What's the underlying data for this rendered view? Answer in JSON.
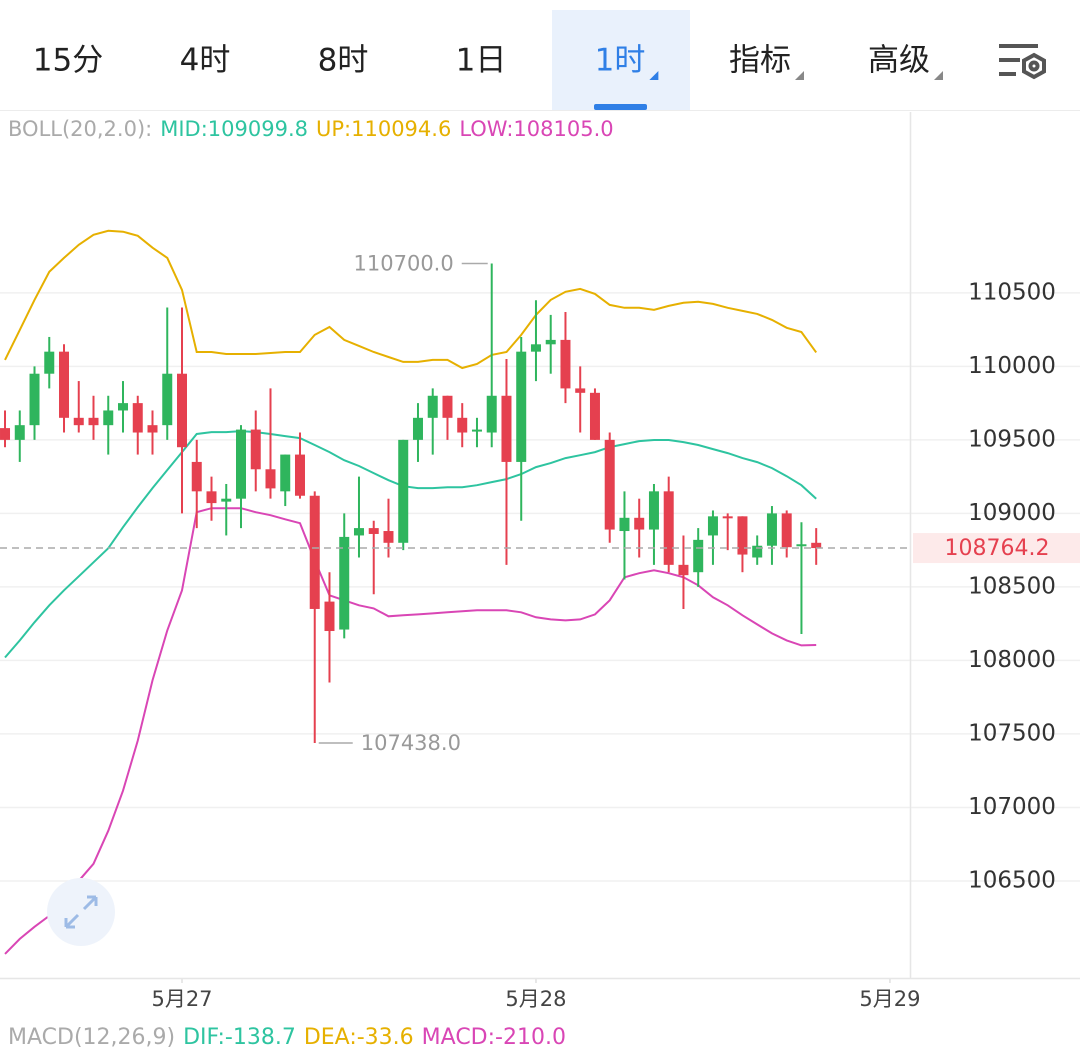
{
  "tabs": [
    {
      "label": "15分"
    },
    {
      "label": "4时"
    },
    {
      "label": "8时"
    },
    {
      "label": "1日"
    },
    {
      "label": "1时",
      "active": true,
      "dropdown": true
    },
    {
      "label": "指标",
      "dropdown": true
    },
    {
      "label": "高级",
      "dropdown": true
    }
  ],
  "chart_data": {
    "type": "candlestick",
    "indicator": {
      "label": "BOLL(20,2.0):",
      "items": [
        {
          "name": "MID:",
          "label": "109099.8",
          "color": "#2ec4a0"
        },
        {
          "name": "UP:",
          "label": "110094.6",
          "color": "#e6b000"
        },
        {
          "name": "LOW:",
          "label": "108105.0",
          "color": "#d946b5"
        }
      ]
    },
    "up_color": "#2fb55d",
    "down_color": "#e5404f",
    "x": [
      0,
      1,
      2,
      3,
      4,
      5,
      6,
      7,
      8,
      9,
      10,
      11,
      12,
      13,
      14,
      15,
      16,
      17,
      18,
      19,
      20,
      21,
      22,
      23,
      24,
      25,
      26,
      27,
      28,
      29,
      30,
      31,
      32,
      33,
      34,
      35,
      36,
      37,
      38,
      39,
      40,
      41,
      42,
      43,
      44,
      45,
      46,
      47,
      48,
      49,
      50,
      51,
      52,
      53,
      54,
      55
    ],
    "open": [
      109580,
      109500,
      109600,
      109950,
      110100,
      109650,
      109650,
      109600,
      109700,
      109750,
      109600,
      109600,
      109950,
      109350,
      109150,
      109080,
      109100,
      109570,
      109300,
      109150,
      109400,
      109120,
      108400,
      108210,
      108850,
      108900,
      108880,
      108800,
      109500,
      109650,
      109800,
      109650,
      109560,
      109550,
      109800,
      109350,
      110100,
      110150,
      110180,
      109850,
      109820,
      109500,
      108880,
      108970,
      108890,
      109150,
      108650,
      108600,
      108850,
      108980,
      108980,
      108700,
      108780,
      109000,
      108780,
      108800
    ],
    "high": [
      109700,
      109700,
      110000,
      110200,
      110150,
      109900,
      109800,
      109800,
      109900,
      109800,
      109700,
      110400,
      110400,
      109500,
      109250,
      109200,
      109600,
      109700,
      109850,
      109400,
      109550,
      109150,
      108600,
      109000,
      109250,
      108950,
      109100,
      109500,
      109750,
      109850,
      109800,
      109750,
      109650,
      110700,
      110050,
      110200,
      110450,
      110350,
      110370,
      110000,
      109850,
      109550,
      109150,
      109100,
      109200,
      109250,
      108850,
      108900,
      109020,
      109000,
      108980,
      108850,
      109050,
      109020,
      108940,
      108900
    ],
    "low": [
      109450,
      109350,
      109500,
      109850,
      109550,
      109550,
      109500,
      109400,
      109550,
      109400,
      109400,
      109500,
      109000,
      108900,
      108950,
      108850,
      108900,
      109150,
      109100,
      109050,
      109100,
      107438,
      107850,
      108150,
      108700,
      108450,
      108700,
      108750,
      109350,
      109400,
      109500,
      109450,
      109450,
      109450,
      108650,
      108950,
      109900,
      109950,
      109750,
      109550,
      109500,
      108800,
      108550,
      108700,
      108650,
      108600,
      108350,
      108500,
      108650,
      108750,
      108600,
      108650,
      108650,
      108700,
      108180,
      108650
    ],
    "close": [
      109500,
      109600,
      109950,
      110100,
      109650,
      109600,
      109600,
      109700,
      109750,
      109550,
      109550,
      109950,
      109450,
      109150,
      109070,
      109100,
      109570,
      109300,
      109170,
      109400,
      109120,
      108350,
      108200,
      108840,
      108900,
      108860,
      108800,
      109500,
      109650,
      109800,
      109650,
      109550,
      109570,
      109800,
      109350,
      110100,
      110150,
      110180,
      109850,
      109820,
      109500,
      108890,
      108970,
      108890,
      109150,
      108650,
      108580,
      108820,
      108980,
      108970,
      108720,
      108780,
      109000,
      108770,
      108790,
      108764.2
    ],
    "series": [
      {
        "name": "MID",
        "color": "#2ec4a0",
        "values": [
          108020,
          108136,
          108259,
          108375,
          108477,
          108572,
          108667,
          108763,
          108906,
          109043,
          109172,
          109295,
          109417,
          109540,
          109553,
          109553,
          109560,
          109553,
          109540,
          109526,
          109512,
          109465,
          109417,
          109362,
          109322,
          109274,
          109226,
          109185,
          109172,
          109172,
          109178,
          109178,
          109192,
          109213,
          109233,
          109267,
          109315,
          109342,
          109376,
          109396,
          109417,
          109451,
          109471,
          109492,
          109499,
          109499,
          109485,
          109465,
          109437,
          109410,
          109376,
          109349,
          109308,
          109253,
          109192,
          109100
        ]
      },
      {
        "name": "UP",
        "color": "#e6b000",
        "values": [
          110044,
          110248,
          110452,
          110643,
          110738,
          110827,
          110895,
          110922,
          110916,
          110888,
          110807,
          110738,
          110520,
          110098,
          110098,
          110084,
          110084,
          110084,
          110091,
          110098,
          110098,
          110214,
          110268,
          110180,
          110139,
          110098,
          110064,
          110030,
          110030,
          110044,
          110044,
          109989,
          110016,
          110078,
          110098,
          110214,
          110350,
          110452,
          110507,
          110527,
          110493,
          110418,
          110398,
          110398,
          110384,
          110411,
          110432,
          110439,
          110425,
          110398,
          110377,
          110357,
          110316,
          110262,
          110234,
          110095
        ]
      },
      {
        "name": "LOW",
        "color": "#d946b5",
        "values": [
          106004,
          106106,
          106188,
          106263,
          106365,
          106501,
          106617,
          106842,
          107114,
          107455,
          107864,
          108204,
          108477,
          109008,
          109035,
          109035,
          109035,
          109008,
          108988,
          108960,
          108933,
          108681,
          108443,
          108409,
          108375,
          108354,
          108300,
          108307,
          108313,
          108320,
          108327,
          108334,
          108341,
          108341,
          108341,
          108327,
          108293,
          108279,
          108272,
          108279,
          108313,
          108409,
          108565,
          108593,
          108613,
          108593,
          108565,
          108511,
          108429,
          108375,
          108307,
          108245,
          108184,
          108136,
          108102,
          108105
        ]
      }
    ],
    "annotations": [
      {
        "x": 33,
        "value": 110700,
        "label": "110700.0",
        "side": "left"
      },
      {
        "x": 21,
        "value": 107438,
        "label": "107438.0",
        "side": "right"
      }
    ],
    "current_price": {
      "value": 108764.2,
      "label": "108764.2"
    },
    "xlim": [
      -0.34,
      61.36
    ],
    "xticks": [
      {
        "value": 12,
        "label": "5月27"
      },
      {
        "value": 36,
        "label": "5月28"
      },
      {
        "value": 60,
        "label": "5月29"
      }
    ],
    "ylim": [
      105840,
      111730
    ],
    "yticks": [
      106500,
      107000,
      107500,
      108000,
      108500,
      109000,
      109500,
      110000,
      110500
    ],
    "grid": true
  },
  "macd": {
    "label": "MACD(12,26,9)",
    "items": [
      {
        "name": "DIF:",
        "label": "-138.7",
        "color": "#2ec4a0"
      },
      {
        "name": "DEA:",
        "label": "-33.6",
        "color": "#e6b000"
      },
      {
        "name": "MACD:",
        "label": "-210.0",
        "color": "#d946b5"
      }
    ]
  }
}
